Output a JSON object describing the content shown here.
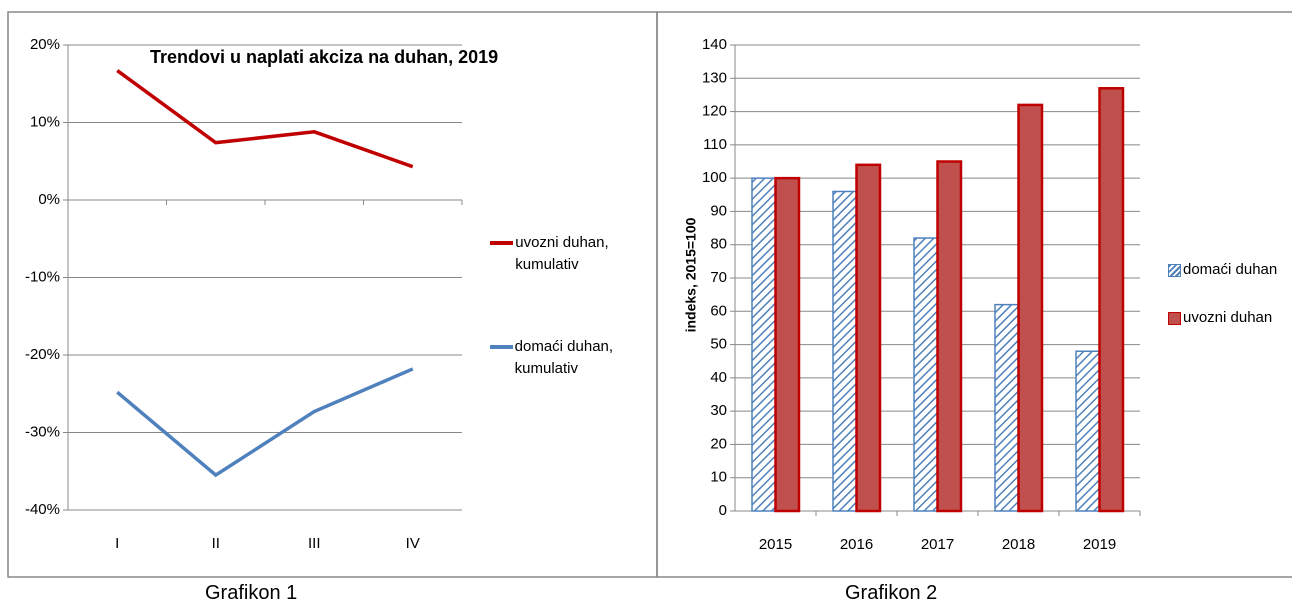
{
  "chart_data": [
    {
      "type": "line",
      "title": "Trendovi u naplati akciza na duhan, 2019",
      "categories": [
        "I",
        "II",
        "III",
        "IV"
      ],
      "series": [
        {
          "name": "uvozni duhan, kumulativ",
          "color": "#c00000",
          "values": [
            16.7,
            7.4,
            8.8,
            4.3
          ]
        },
        {
          "name": "domaći duhan, kumulativ",
          "color": "#4f81bd",
          "values": [
            -24.8,
            -35.5,
            -27.3,
            -21.8
          ]
        }
      ],
      "ylim": [
        -40,
        20
      ],
      "yticks": [
        {
          "value": -40,
          "label": "-40%"
        },
        {
          "value": -30,
          "label": "-30%"
        },
        {
          "value": -20,
          "label": "-20%"
        },
        {
          "value": -10,
          "label": "-10%"
        },
        {
          "value": 0,
          "label": "0%"
        },
        {
          "value": 10,
          "label": "10%"
        },
        {
          "value": 20,
          "label": "20%"
        }
      ],
      "grid": true,
      "legend": "right"
    },
    {
      "type": "bar",
      "ylabel": "indeks, 2015=100",
      "categories": [
        "2015",
        "2016",
        "2017",
        "2018",
        "2019"
      ],
      "series": [
        {
          "name": "domaći duhan",
          "color": "#4f81bd",
          "pattern": "hatch",
          "values": [
            100,
            96,
            82,
            62,
            48
          ]
        },
        {
          "name": "uvozni duhan",
          "color": "#c0504d",
          "values": [
            100,
            104,
            105,
            122,
            127
          ]
        }
      ],
      "ylim": [
        0,
        140
      ],
      "yticks": [
        0,
        10,
        20,
        30,
        40,
        50,
        60,
        70,
        80,
        90,
        100,
        110,
        120,
        130,
        140
      ],
      "grid": true,
      "legend": "right"
    }
  ],
  "captions": [
    "Grafikon 1",
    "Grafikon 2"
  ]
}
